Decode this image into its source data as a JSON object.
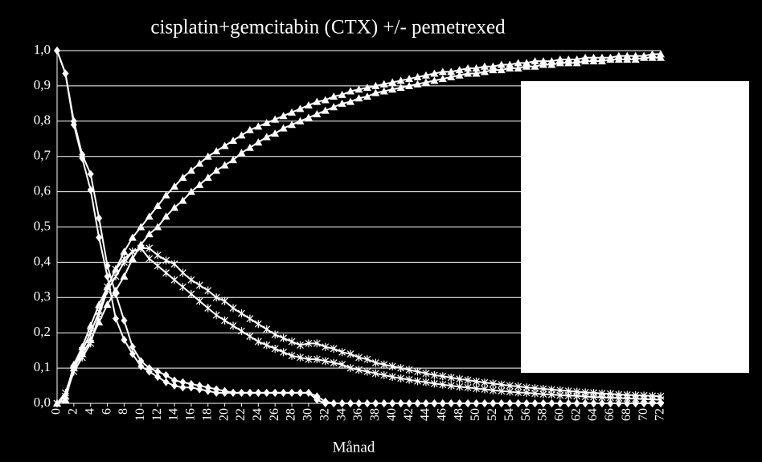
{
  "chart_data": {
    "type": "line",
    "title": "cisplatin+gemcitabin (CTX) +/- pemetrexed",
    "x_label": "Månad",
    "x": [
      0,
      1,
      2,
      3,
      4,
      5,
      6,
      7,
      8,
      9,
      10,
      11,
      12,
      13,
      14,
      15,
      16,
      17,
      18,
      19,
      20,
      21,
      22,
      23,
      24,
      25,
      26,
      27,
      28,
      29,
      30,
      31,
      32,
      33,
      34,
      35,
      36,
      37,
      38,
      39,
      40,
      41,
      42,
      43,
      44,
      45,
      46,
      47,
      48,
      49,
      50,
      51,
      52,
      53,
      54,
      55,
      56,
      57,
      58,
      59,
      60,
      61,
      62,
      63,
      64,
      65,
      66,
      67,
      68,
      69,
      70,
      71,
      72
    ],
    "xlim": [
      0,
      72
    ],
    "xticks": [
      0,
      2,
      4,
      6,
      8,
      10,
      12,
      14,
      16,
      18,
      20,
      22,
      24,
      26,
      28,
      30,
      32,
      34,
      36,
      38,
      40,
      42,
      44,
      46,
      48,
      50,
      52,
      54,
      56,
      58,
      60,
      62,
      64,
      66,
      68,
      70,
      72
    ],
    "ylim": [
      0,
      1
    ],
    "yticks": [
      {
        "value": 0,
        "label": "0,0"
      },
      {
        "value": 0.1,
        "label": "0,1"
      },
      {
        "value": 0.2,
        "label": "0,2"
      },
      {
        "value": 0.3,
        "label": "0,3"
      },
      {
        "value": 0.4,
        "label": "0,4"
      },
      {
        "value": 0.5,
        "label": "0,5"
      },
      {
        "value": 0.6,
        "label": "0,6"
      },
      {
        "value": 0.7,
        "label": "0,7"
      },
      {
        "value": 0.8,
        "label": "0,8"
      },
      {
        "value": 0.9,
        "label": "0,9"
      },
      {
        "value": 1,
        "label": "1,0"
      }
    ],
    "grid": true,
    "series": [
      {
        "color": "#ffffff",
        "marker": "diamond",
        "values": [
          1,
          0.935,
          0.8,
          0.705,
          0.65,
          0.525,
          0.39,
          0.31,
          0.235,
          0.16,
          0.12,
          0.1,
          0.09,
          0.08,
          0.065,
          0.06,
          0.055,
          0.05,
          0.045,
          0.04,
          0.035,
          0.03,
          0.03,
          0.03,
          0.03,
          0.03,
          0.03,
          0.03,
          0.03,
          0.03,
          0.03,
          0.02,
          0.005,
          0,
          0,
          0,
          0,
          0,
          0,
          0,
          0,
          0,
          0,
          0,
          0,
          0,
          0,
          0,
          0,
          0,
          0,
          0,
          0,
          0,
          0,
          0,
          0,
          0,
          0,
          0,
          0,
          0,
          0,
          0,
          0,
          0,
          0,
          0,
          0,
          0,
          0,
          0,
          0
        ]
      },
      {
        "color": "#ffffff",
        "marker": "diamond",
        "values": [
          1,
          0.935,
          0.79,
          0.695,
          0.605,
          0.47,
          0.36,
          0.24,
          0.18,
          0.14,
          0.105,
          0.09,
          0.075,
          0.06,
          0.05,
          0.045,
          0.045,
          0.04,
          0.035,
          0.03,
          0.03,
          0.03,
          0.03,
          0.03,
          0.03,
          0.03,
          0.03,
          0.03,
          0.03,
          0.03,
          0.03,
          0.01,
          0,
          0,
          0,
          0,
          0,
          0,
          0,
          0,
          0,
          0,
          0,
          0,
          0,
          0,
          0,
          0,
          0,
          0,
          0,
          0,
          0,
          0,
          0,
          0,
          0,
          0,
          0,
          0,
          0,
          0,
          0,
          0,
          0,
          0,
          0,
          0,
          0,
          0,
          0,
          0,
          0
        ]
      },
      {
        "color": "#ffffff",
        "marker": "cross",
        "values": [
          0,
          0.03,
          0.1,
          0.15,
          0.2,
          0.26,
          0.33,
          0.38,
          0.41,
          0.43,
          0.44,
          0.44,
          0.42,
          0.405,
          0.395,
          0.37,
          0.35,
          0.335,
          0.32,
          0.3,
          0.29,
          0.27,
          0.255,
          0.24,
          0.225,
          0.21,
          0.195,
          0.185,
          0.175,
          0.165,
          0.17,
          0.17,
          0.16,
          0.155,
          0.145,
          0.14,
          0.13,
          0.125,
          0.115,
          0.11,
          0.105,
          0.1,
          0.095,
          0.09,
          0.085,
          0.08,
          0.077,
          0.073,
          0.069,
          0.066,
          0.062,
          0.059,
          0.056,
          0.053,
          0.05,
          0.048,
          0.045,
          0.043,
          0.041,
          0.039,
          0.037,
          0.035,
          0.033,
          0.031,
          0.03,
          0.028,
          0.027,
          0.025,
          0.024,
          0.023,
          0.022,
          0.021,
          0.02
        ]
      },
      {
        "color": "#ffffff",
        "marker": "cross",
        "values": [
          0,
          0.02,
          0.09,
          0.13,
          0.17,
          0.25,
          0.32,
          0.36,
          0.4,
          0.43,
          0.44,
          0.41,
          0.39,
          0.37,
          0.35,
          0.33,
          0.31,
          0.29,
          0.27,
          0.25,
          0.235,
          0.22,
          0.205,
          0.19,
          0.175,
          0.165,
          0.155,
          0.145,
          0.135,
          0.13,
          0.125,
          0.125,
          0.12,
          0.115,
          0.11,
          0.1,
          0.095,
          0.09,
          0.085,
          0.08,
          0.075,
          0.071,
          0.067,
          0.063,
          0.06,
          0.056,
          0.053,
          0.05,
          0.047,
          0.045,
          0.042,
          0.04,
          0.037,
          0.035,
          0.033,
          0.031,
          0.03,
          0.028,
          0.026,
          0.025,
          0.023,
          0.022,
          0.021,
          0.019,
          0.018,
          0.017,
          0.016,
          0.015,
          0.014,
          0.013,
          0.012,
          0.011,
          0.01
        ]
      },
      {
        "color": "#ffffff",
        "marker": "triangle",
        "values": [
          0,
          0.02,
          0.11,
          0.16,
          0.22,
          0.28,
          0.33,
          0.38,
          0.43,
          0.47,
          0.5,
          0.53,
          0.56,
          0.59,
          0.615,
          0.64,
          0.66,
          0.68,
          0.7,
          0.715,
          0.73,
          0.745,
          0.76,
          0.775,
          0.785,
          0.795,
          0.805,
          0.815,
          0.825,
          0.835,
          0.845,
          0.855,
          0.86,
          0.87,
          0.875,
          0.885,
          0.89,
          0.895,
          0.9,
          0.905,
          0.91,
          0.915,
          0.92,
          0.925,
          0.93,
          0.935,
          0.94,
          0.94,
          0.945,
          0.95,
          0.95,
          0.955,
          0.955,
          0.96,
          0.96,
          0.965,
          0.965,
          0.97,
          0.97,
          0.97,
          0.975,
          0.975,
          0.975,
          0.98,
          0.98,
          0.98,
          0.98,
          0.985,
          0.985,
          0.985,
          0.985,
          0.99,
          0.99
        ]
      },
      {
        "color": "#ffffff",
        "marker": "triangle",
        "values": [
          0,
          0.01,
          0.1,
          0.14,
          0.18,
          0.23,
          0.28,
          0.32,
          0.36,
          0.41,
          0.45,
          0.48,
          0.5,
          0.53,
          0.555,
          0.575,
          0.6,
          0.62,
          0.64,
          0.66,
          0.675,
          0.69,
          0.71,
          0.725,
          0.74,
          0.755,
          0.765,
          0.78,
          0.79,
          0.8,
          0.81,
          0.82,
          0.83,
          0.84,
          0.85,
          0.855,
          0.865,
          0.87,
          0.88,
          0.885,
          0.89,
          0.895,
          0.9,
          0.905,
          0.91,
          0.915,
          0.92,
          0.925,
          0.93,
          0.935,
          0.935,
          0.94,
          0.945,
          0.945,
          0.95,
          0.95,
          0.955,
          0.955,
          0.96,
          0.96,
          0.965,
          0.965,
          0.965,
          0.97,
          0.97,
          0.97,
          0.975,
          0.975,
          0.975,
          0.975,
          0.98,
          0.98,
          0.98
        ]
      }
    ]
  }
}
